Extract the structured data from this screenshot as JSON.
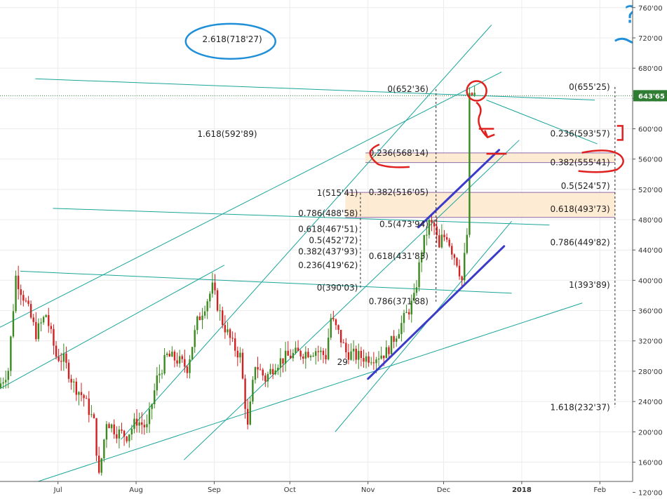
{
  "chart_data": {
    "type": "candlestick",
    "instrument_price_format": "apostrophe decimal separator",
    "yticks": [
      "760'00",
      "720'00",
      "680'00",
      "640'00",
      "600'00",
      "560'00",
      "520'00",
      "480'00",
      "440'00",
      "400'00",
      "360'00",
      "320'00",
      "280'00",
      "240'00",
      "200'00",
      "160'00",
      "120'00"
    ],
    "ytick_values": [
      760,
      720,
      680,
      640,
      600,
      560,
      520,
      480,
      440,
      400,
      360,
      320,
      280,
      240,
      200,
      160,
      120
    ],
    "ylim": [
      115,
      770
    ],
    "xticks": [
      "Jul",
      "Aug",
      "Sep",
      "Oct",
      "Nov",
      "Dec",
      "2018",
      "Feb"
    ],
    "xtick_dates": [
      "2017-07-01",
      "2017-08-01",
      "2017-09-01",
      "2017-10-01",
      "2017-11-01",
      "2017-12-01",
      "2018-01-01",
      "2018-02-01"
    ],
    "xlim": [
      "2017-06-08",
      "2018-02-14"
    ],
    "last_price": "643'65",
    "last_price_value": 643.65,
    "colors": {
      "up": "#3a8a1f",
      "down": "#d21f1f",
      "grid": "#ececec",
      "fib_zone": "#fde7cb",
      "trendline": "#1aa59a",
      "channel": "#3b3bc9",
      "annotation_blue": "#1e8fd8",
      "annotation_red": "#e0201f",
      "last_price_bg": "#2e7d32"
    },
    "price_path": [
      [
        "2017-06-08",
        258
      ],
      [
        "2017-06-12",
        282
      ],
      [
        "2017-06-15",
        405
      ],
      [
        "2017-06-19",
        370
      ],
      [
        "2017-06-23",
        330
      ],
      [
        "2017-06-27",
        355
      ],
      [
        "2017-07-01",
        300
      ],
      [
        "2017-07-04",
        295
      ],
      [
        "2017-07-08",
        262
      ],
      [
        "2017-07-12",
        245
      ],
      [
        "2017-07-16",
        212
      ],
      [
        "2017-07-18",
        140
      ],
      [
        "2017-07-21",
        215
      ],
      [
        "2017-07-25",
        200
      ],
      [
        "2017-07-29",
        195
      ],
      [
        "2017-08-02",
        215
      ],
      [
        "2017-08-06",
        205
      ],
      [
        "2017-08-10",
        270
      ],
      [
        "2017-08-14",
        300
      ],
      [
        "2017-08-18",
        295
      ],
      [
        "2017-08-22",
        285
      ],
      [
        "2017-08-26",
        345
      ],
      [
        "2017-08-30",
        375
      ],
      [
        "2017-09-01",
        390
      ],
      [
        "2017-09-05",
        345
      ],
      [
        "2017-09-09",
        315
      ],
      [
        "2017-09-12",
        300
      ],
      [
        "2017-09-15",
        205
      ],
      [
        "2017-09-18",
        290
      ],
      [
        "2017-09-22",
        270
      ],
      [
        "2017-09-26",
        290
      ],
      [
        "2017-09-30",
        298
      ],
      [
        "2017-10-04",
        303
      ],
      [
        "2017-10-08",
        305
      ],
      [
        "2017-10-12",
        308
      ],
      [
        "2017-10-16",
        300
      ],
      [
        "2017-10-18",
        350
      ],
      [
        "2017-10-21",
        330
      ],
      [
        "2017-10-24",
        305
      ],
      [
        "2017-10-28",
        300
      ],
      [
        "2017-11-01",
        298
      ],
      [
        "2017-11-05",
        300
      ],
      [
        "2017-11-09",
        305
      ],
      [
        "2017-11-13",
        330
      ],
      [
        "2017-11-17",
        355
      ],
      [
        "2017-11-20",
        375
      ],
      [
        "2017-11-23",
        440
      ],
      [
        "2017-11-26",
        475
      ],
      [
        "2017-11-28",
        470
      ],
      [
        "2017-11-30",
        440
      ],
      [
        "2017-12-01",
        455
      ],
      [
        "2017-12-03",
        460
      ],
      [
        "2017-12-05",
        440
      ],
      [
        "2017-12-07",
        425
      ],
      [
        "2017-12-09",
        400
      ],
      [
        "2017-12-11",
        460
      ],
      [
        "2017-12-12",
        640
      ],
      [
        "2017-12-13",
        645
      ]
    ],
    "fib_zones": [
      {
        "from": 555.41,
        "to": 568.14,
        "d0": "2017-10-31",
        "d1": "2018-02-07"
      },
      {
        "from": 483.0,
        "to": 516.05,
        "d0": "2017-10-23",
        "d1": "2018-02-07"
      }
    ],
    "fib_left": {
      "label_date": "2017-10-28",
      "line_date": "2017-10-29",
      "levels": [
        {
          "label": "1(515'41)",
          "value": 515.41
        },
        {
          "label": "0.786(488'58)",
          "value": 488.58
        },
        {
          "label": "0.618(467'51)",
          "value": 467.51
        },
        {
          "label": "0.5(452'72)",
          "value": 452.72
        },
        {
          "label": "0.382(437'93)",
          "value": 437.93
        },
        {
          "label": "0.236(419'62)",
          "value": 419.62
        },
        {
          "label": "0(390'03)",
          "value": 390.03
        }
      ]
    },
    "fib_middle": {
      "label_date": "2017-11-25",
      "line_date": "2017-11-28",
      "levels": [
        {
          "label": "0(652'36)",
          "value": 652.36
        },
        {
          "label": "0.236(568'14)",
          "value": 568.14
        },
        {
          "label": "0.382(516'05)",
          "value": 516.05
        },
        {
          "label": "0.5(473'94)",
          "value": 473.94
        },
        {
          "label": "0.618(431'83)",
          "value": 431.83
        },
        {
          "label": "0.786(371'88)",
          "value": 371.88
        }
      ],
      "extensions": [
        {
          "label": "1.618(592'89)",
          "value": 592.89,
          "date": "2017-09-18"
        },
        {
          "label": "2.618(718'27)",
          "value": 718.27,
          "date": "2017-09-20"
        }
      ],
      "hidden_partial": {
        "label": "29",
        "value": 292,
        "date": "2017-10-24"
      }
    },
    "fib_right": {
      "label_date": "2018-02-05",
      "line_date": "2018-02-07",
      "levels": [
        {
          "label": "0(655'25)",
          "value": 655.25
        },
        {
          "label": "0.236(593'57)",
          "value": 593.57
        },
        {
          "label": "0.382(555'41)",
          "value": 555.41
        },
        {
          "label": "0.5(524'57)",
          "value": 524.57
        },
        {
          "label": "0.618(493'73)",
          "value": 493.73
        },
        {
          "label": "0.786(449'82)",
          "value": 449.82
        },
        {
          "label": "1(393'89)",
          "value": 393.89
        },
        {
          "label": "1.618(232'37)",
          "value": 232.37
        }
      ]
    },
    "trendlines": [
      {
        "p1": [
          "2017-06-08",
          338
        ],
        "p2": [
          "2017-12-24",
          675
        ]
      },
      {
        "p1": [
          "2017-07-26",
          190
        ],
        "p2": [
          "2017-12-20",
          737
        ]
      },
      {
        "p1": [
          "2017-06-08",
          118
        ],
        "p2": [
          "2018-01-25",
          370
        ]
      },
      {
        "p1": [
          "2017-08-20",
          163
        ],
        "p2": [
          "2017-12-31",
          585
        ]
      },
      {
        "p1": [
          "2017-10-19",
          200
        ],
        "p2": [
          "2017-12-28",
          478
        ]
      },
      {
        "p1": [
          "2017-06-16",
          412
        ],
        "p2": [
          "2017-12-28",
          383
        ]
      },
      {
        "p1": [
          "2017-06-29",
          495
        ],
        "p2": [
          "2018-01-12",
          473
        ]
      },
      {
        "p1": [
          "2017-06-22",
          666
        ],
        "p2": [
          "2018-01-30",
          638
        ]
      },
      {
        "p1": [
          "2017-12-18",
          638
        ],
        "p2": [
          "2018-01-31",
          580
        ]
      },
      {
        "p1": [
          "2017-06-08",
          257
        ],
        "p2": [
          "2017-09-05",
          420
        ]
      }
    ],
    "channel_lines": [
      {
        "p1": [
          "2017-11-01",
          270
        ],
        "p2": [
          "2017-12-25",
          445
        ]
      },
      {
        "p1": [
          "2017-11-21",
          470
        ],
        "p2": [
          "2017-12-23",
          572
        ]
      }
    ],
    "annotations": {
      "blue_question": "?",
      "blue_ellipse_target": "2.618(718'27)",
      "red_circle_targets": [
        "0.236(568'14)",
        "0.236(593'57)",
        "0.382(555'41)"
      ]
    }
  }
}
